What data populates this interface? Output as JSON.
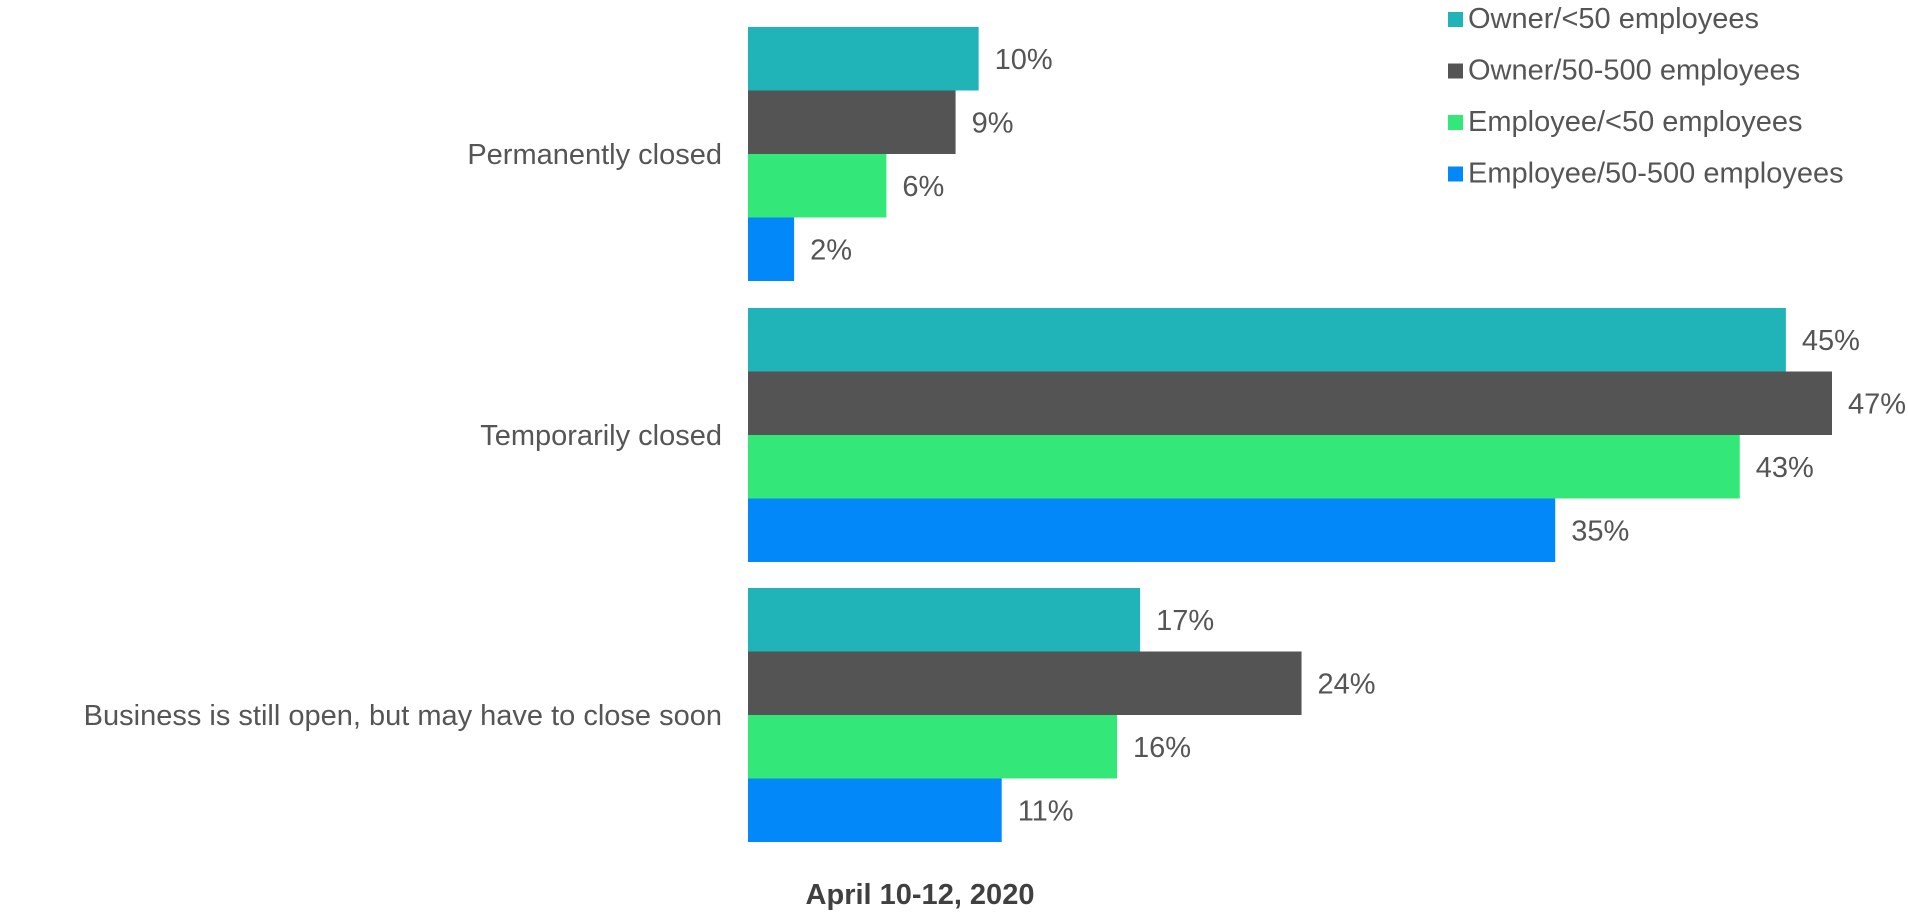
{
  "chart_data": {
    "type": "bar",
    "orientation": "horizontal",
    "title": "",
    "xlabel": "April 10-12, 2020",
    "ylabel": "",
    "categories": [
      "Permanently closed",
      "Temporarily closed",
      "Business is still open, but may have to close soon"
    ],
    "series": [
      {
        "name": "Owner/<50 employees",
        "color": "#20B4B8",
        "values": [
          10,
          45,
          17
        ],
        "labels": [
          "10%",
          "45%",
          "17%"
        ]
      },
      {
        "name": "Owner/50-500 employees",
        "color": "#545454",
        "values": [
          9,
          47,
          24
        ],
        "labels": [
          "9%",
          "47%",
          "24%"
        ]
      },
      {
        "name": "Employee/<50 employees",
        "color": "#33E878",
        "values": [
          6,
          43,
          16
        ],
        "labels": [
          "6%",
          "43%",
          "16%"
        ]
      },
      {
        "name": "Employee/50-500 employees",
        "color": "#0388FA",
        "values": [
          2,
          35,
          11
        ],
        "labels": [
          "2%",
          "35%",
          "11%"
        ]
      }
    ],
    "value_unit": "%",
    "xlim": [
      0,
      47
    ],
    "grid": false,
    "legend_position": "top-right",
    "text_color": "#555555",
    "axis_label_color": "#404040"
  }
}
